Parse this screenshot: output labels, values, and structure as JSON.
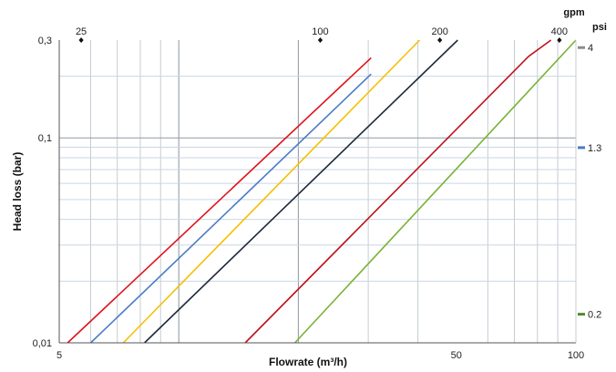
{
  "chart_data": {
    "type": "line",
    "title": "",
    "xlabel": "Flowrate  (m³/h)",
    "ylabel": "Head loss (bar)",
    "x_scale": "log",
    "y_scale": "log",
    "xlim": [
      5,
      100
    ],
    "ylim": [
      0.01,
      0.3
    ],
    "grid": true,
    "x_ticks": [
      {
        "value": 5,
        "label": "5"
      },
      {
        "value": 50,
        "label": "50"
      },
      {
        "value": 100,
        "label": "100"
      }
    ],
    "y_ticks": [
      {
        "value": 0.01,
        "label": "0,01"
      },
      {
        "value": 0.1,
        "label": "0,1"
      },
      {
        "value": 0.3,
        "label": "0,3"
      }
    ],
    "top_axis": {
      "unit": "gpm",
      "ticks": [
        {
          "value": 25,
          "label": "25"
        },
        {
          "value": 100,
          "label": "100"
        },
        {
          "value": 200,
          "label": "200"
        },
        {
          "value": 400,
          "label": "400"
        }
      ]
    },
    "right_axis": {
      "unit": "psi",
      "ticks": [
        {
          "value": 4,
          "label": "4"
        },
        {
          "value": 1.3,
          "label": "1.3"
        },
        {
          "value": 0.2,
          "label": "0.2"
        }
      ]
    },
    "series": [
      {
        "color": "#e0121b",
        "x": [
          5.25,
          30.5
        ],
        "y": [
          0.01,
          0.246
        ]
      },
      {
        "color": "#4a7bc8",
        "x": [
          6.0,
          30.5
        ],
        "y": [
          0.01,
          0.205
        ]
      },
      {
        "color": "#f5c000",
        "x": [
          7.25,
          40.4
        ],
        "y": [
          0.01,
          0.3
        ]
      },
      {
        "color": "#1e2a3a",
        "x": [
          8.2,
          50.4
        ],
        "y": [
          0.01,
          0.3
        ]
      },
      {
        "color": "#c0101a",
        "x": [
          14.7,
          76.0,
          86.5
        ],
        "y": [
          0.01,
          0.25,
          0.3
        ]
      },
      {
        "color": "#77b233",
        "x": [
          19.6,
          100.0
        ],
        "y": [
          0.01,
          0.3
        ]
      }
    ]
  }
}
